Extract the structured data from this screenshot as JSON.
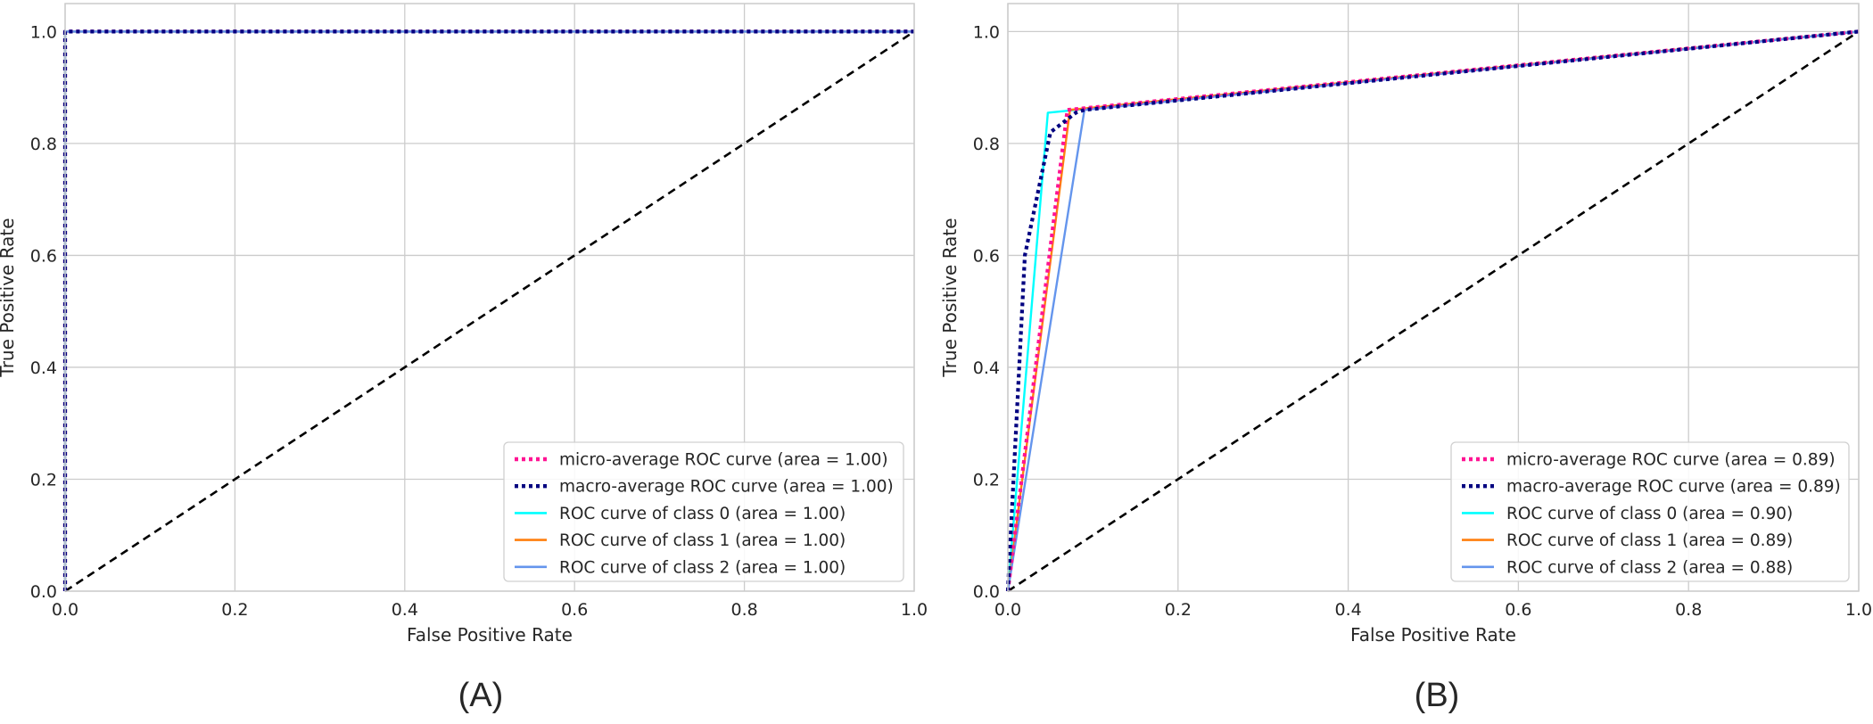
{
  "chart_data": [
    {
      "panel": "(A)",
      "type": "line",
      "xlabel": "False Positive Rate",
      "ylabel": "True Positive Rate",
      "xlim": [
        0.0,
        1.0
      ],
      "ylim": [
        0.0,
        1.05
      ],
      "xticks": [
        "0.0",
        "0.2",
        "0.4",
        "0.6",
        "0.8",
        "1.0"
      ],
      "yticks": [
        "0.0",
        "0.2",
        "0.4",
        "0.6",
        "0.8",
        "1.0"
      ],
      "grid": true,
      "legend_position": "lower-right",
      "series": [
        {
          "name": "micro-average ROC curve (area = 1.00)",
          "color": "#ff1493",
          "style": "dotted",
          "x": [
            0.0,
            0.0,
            1.0
          ],
          "y": [
            0.0,
            1.0,
            1.0
          ]
        },
        {
          "name": "macro-average ROC curve (area = 1.00)",
          "color": "#000080",
          "style": "dotted",
          "x": [
            0.0,
            0.0,
            1.0
          ],
          "y": [
            0.0,
            1.0,
            1.0
          ]
        },
        {
          "name": "ROC curve of class 0 (area = 1.00)",
          "color": "#00ffff",
          "style": "solid",
          "x": [
            0.0,
            0.0,
            1.0
          ],
          "y": [
            0.0,
            1.0,
            1.0
          ]
        },
        {
          "name": "ROC curve of class 1 (area = 1.00)",
          "color": "#ff7f0e",
          "style": "solid",
          "x": [
            0.0,
            0.0,
            1.0
          ],
          "y": [
            0.0,
            1.0,
            1.0
          ]
        },
        {
          "name": "ROC curve of class 2 (area = 1.00)",
          "color": "#6495ed",
          "style": "solid",
          "x": [
            0.0,
            0.0,
            1.0
          ],
          "y": [
            0.0,
            1.0,
            1.0
          ]
        }
      ],
      "diagonal": {
        "x": [
          0.0,
          1.0
        ],
        "y": [
          0.0,
          1.0
        ],
        "color": "#000000",
        "style": "dashed"
      }
    },
    {
      "panel": "(B)",
      "type": "line",
      "xlabel": "False Positive Rate",
      "ylabel": "True Positive Rate",
      "xlim": [
        0.0,
        1.0
      ],
      "ylim": [
        0.0,
        1.05
      ],
      "xticks": [
        "0.0",
        "0.2",
        "0.4",
        "0.6",
        "0.8",
        "1.0"
      ],
      "yticks": [
        "0.0",
        "0.2",
        "0.4",
        "0.6",
        "0.8",
        "1.0"
      ],
      "grid": true,
      "legend_position": "lower-right",
      "series": [
        {
          "name": "micro-average ROC curve (area = 0.89)",
          "color": "#ff1493",
          "style": "dotted",
          "x": [
            0.0,
            0.07,
            1.0
          ],
          "y": [
            0.0,
            0.86,
            1.0
          ]
        },
        {
          "name": "macro-average ROC curve (area = 0.89)",
          "color": "#000080",
          "style": "dotted",
          "x": [
            0.0,
            0.01,
            0.02,
            0.05,
            0.08,
            0.09,
            1.0
          ],
          "y": [
            0.0,
            0.3,
            0.6,
            0.82,
            0.855,
            0.86,
            1.0
          ]
        },
        {
          "name": "ROC curve of class 0 (area = 0.90)",
          "color": "#00ffff",
          "style": "solid",
          "x": [
            0.0,
            0.047,
            1.0
          ],
          "y": [
            0.0,
            0.855,
            1.0
          ]
        },
        {
          "name": "ROC curve of class 1 (area = 0.89)",
          "color": "#ff7f0e",
          "style": "solid",
          "x": [
            0.0,
            0.073,
            1.0
          ],
          "y": [
            0.0,
            0.86,
            1.0
          ]
        },
        {
          "name": "ROC curve of class 2 (area = 0.88)",
          "color": "#6495ed",
          "style": "solid",
          "x": [
            0.0,
            0.09,
            1.0
          ],
          "y": [
            0.0,
            0.86,
            1.0
          ]
        }
      ],
      "diagonal": {
        "x": [
          0.0,
          1.0
        ],
        "y": [
          0.0,
          1.0
        ],
        "color": "#000000",
        "style": "dashed"
      }
    }
  ]
}
